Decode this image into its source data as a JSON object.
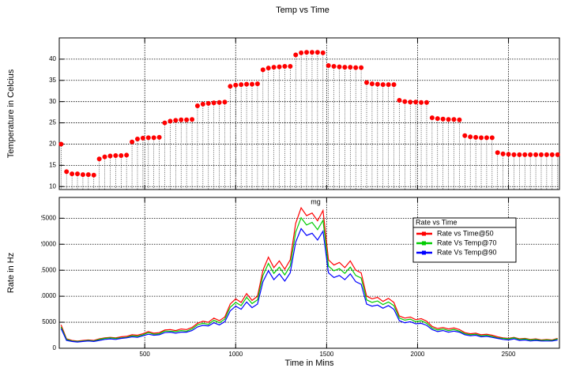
{
  "chart_data": [
    {
      "type": "scatter",
      "title": "Temp vs Time",
      "ylabel": "Temperature in Celcius",
      "drop_lines": true,
      "grid": true,
      "xlim": [
        30,
        2780
      ],
      "xticks": [
        500,
        1000,
        1500,
        2000,
        2500
      ],
      "ylim": [
        9.3,
        45
      ],
      "yticks": [
        10,
        15,
        20,
        25,
        30,
        35,
        40
      ],
      "series": [
        {
          "name": "Temp",
          "color": "#ff0000",
          "x": [
            40,
            70,
            100,
            130,
            160,
            190,
            220,
            250,
            280,
            310,
            340,
            370,
            400,
            430,
            460,
            490,
            520,
            550,
            580,
            610,
            640,
            670,
            700,
            730,
            760,
            790,
            820,
            850,
            880,
            910,
            940,
            970,
            1000,
            1030,
            1060,
            1090,
            1120,
            1150,
            1180,
            1210,
            1240,
            1270,
            1300,
            1330,
            1360,
            1390,
            1420,
            1450,
            1480,
            1510,
            1540,
            1570,
            1600,
            1630,
            1660,
            1690,
            1720,
            1750,
            1780,
            1810,
            1840,
            1870,
            1900,
            1930,
            1960,
            1990,
            2020,
            2050,
            2080,
            2110,
            2140,
            2170,
            2200,
            2230,
            2260,
            2290,
            2320,
            2350,
            2380,
            2410,
            2440,
            2470,
            2500,
            2530,
            2560,
            2590,
            2620,
            2650,
            2680,
            2710,
            2740,
            2770
          ],
          "values": [
            20,
            13.5,
            13,
            13,
            12.8,
            12.8,
            12.7,
            16.5,
            17,
            17.2,
            17.3,
            17.3,
            17.4,
            20.5,
            21.2,
            21.4,
            21.5,
            21.5,
            21.6,
            25,
            25.4,
            25.6,
            25.7,
            25.7,
            25.8,
            29,
            29.4,
            29.6,
            29.7,
            29.8,
            29.9,
            33.6,
            33.9,
            34,
            34.1,
            34.1,
            34.2,
            37.5,
            37.9,
            38.1,
            38.2,
            38.3,
            38.3,
            41,
            41.5,
            41.6,
            41.6,
            41.6,
            41.5,
            38.5,
            38.3,
            38.2,
            38.1,
            38.1,
            38,
            38,
            34.5,
            34.2,
            34.1,
            34,
            34,
            34,
            30.3,
            30,
            29.9,
            29.9,
            29.8,
            29.8,
            26.2,
            26,
            25.9,
            25.8,
            25.8,
            25.7,
            22,
            21.7,
            21.6,
            21.5,
            21.5,
            21.5,
            18,
            17.7,
            17.6,
            17.5,
            17.5,
            17.5,
            17.5,
            17.5,
            17.5,
            17.5,
            17.5,
            17.5
          ]
        }
      ]
    },
    {
      "type": "line",
      "xlabel": "Time in Mins",
      "ylabel": "Rate in Hz",
      "grid": true,
      "legend_title": "Rate vs Time",
      "legend_position": "right",
      "annotation": "mg",
      "annotation_x": 1440,
      "annotation_y": 28100,
      "xlim": [
        30,
        2780
      ],
      "xticks": [
        500,
        1000,
        1500,
        2000,
        2500
      ],
      "ylim": [
        0,
        29000
      ],
      "yticks": [
        0,
        5000,
        10000,
        15000,
        20000,
        25000
      ],
      "x": [
        40,
        70,
        100,
        130,
        160,
        190,
        220,
        250,
        280,
        310,
        340,
        370,
        400,
        430,
        460,
        490,
        520,
        550,
        580,
        610,
        640,
        670,
        700,
        730,
        760,
        790,
        820,
        850,
        880,
        910,
        940,
        970,
        1000,
        1030,
        1060,
        1090,
        1120,
        1150,
        1180,
        1210,
        1240,
        1270,
        1300,
        1330,
        1360,
        1390,
        1420,
        1450,
        1480,
        1510,
        1540,
        1570,
        1600,
        1630,
        1660,
        1690,
        1720,
        1750,
        1780,
        1810,
        1840,
        1870,
        1900,
        1930,
        1960,
        1990,
        2020,
        2050,
        2080,
        2110,
        2140,
        2170,
        2200,
        2230,
        2260,
        2290,
        2320,
        2350,
        2380,
        2410,
        2440,
        2470,
        2500,
        2530,
        2560,
        2590,
        2620,
        2650,
        2680,
        2710,
        2740,
        2770
      ],
      "series": [
        {
          "name": "Rate vs Time@50",
          "color": "#ff0000",
          "values": [
            4500,
            1800,
            1500,
            1400,
            1500,
            1600,
            1500,
            1800,
            2000,
            2100,
            2000,
            2200,
            2300,
            2600,
            2500,
            2800,
            3200,
            2900,
            3000,
            3500,
            3600,
            3400,
            3700,
            3600,
            4000,
            4800,
            5200,
            5000,
            5800,
            5300,
            6000,
            8500,
            9500,
            8800,
            10500,
            9200,
            10000,
            15000,
            17500,
            15500,
            16800,
            15200,
            17000,
            24000,
            27000,
            25500,
            26000,
            24500,
            26500,
            17000,
            16000,
            16500,
            15500,
            16800,
            15000,
            14500,
            10000,
            9500,
            9800,
            9000,
            9600,
            8800,
            6200,
            5800,
            6000,
            5500,
            5700,
            5200,
            4200,
            3800,
            4000,
            3700,
            3900,
            3600,
            3000,
            2800,
            2900,
            2600,
            2700,
            2500,
            2200,
            2000,
            1900,
            2100,
            1800,
            1900,
            1700,
            1800,
            1600,
            1700,
            1600,
            1900
          ]
        },
        {
          "name": "Rate Vs Temp@70",
          "color": "#00cc00",
          "values": [
            4100,
            1700,
            1400,
            1300,
            1400,
            1500,
            1400,
            1700,
            1900,
            2000,
            1900,
            2000,
            2100,
            2400,
            2300,
            2600,
            3000,
            2700,
            2800,
            3300,
            3300,
            3200,
            3400,
            3300,
            3700,
            4500,
            4800,
            4600,
            5400,
            4900,
            5600,
            7900,
            8800,
            8200,
            9800,
            8600,
            9300,
            14000,
            16300,
            14400,
            15600,
            14100,
            15800,
            22300,
            25100,
            23700,
            24200,
            22800,
            24600,
            15800,
            14900,
            15300,
            14400,
            15600,
            14000,
            13500,
            9300,
            8800,
            9100,
            8400,
            8900,
            8200,
            5800,
            5400,
            5600,
            5100,
            5300,
            4800,
            3900,
            3500,
            3700,
            3400,
            3600,
            3300,
            2800,
            2600,
            2700,
            2400,
            2500,
            2300,
            2000,
            1900,
            1800,
            2000,
            1700,
            1800,
            1600,
            1700,
            1500,
            1600,
            1500,
            1800
          ]
        },
        {
          "name": "Rate Vs Temp@90",
          "color": "#0000ff",
          "values": [
            3800,
            1500,
            1300,
            1200,
            1300,
            1400,
            1300,
            1500,
            1700,
            1800,
            1700,
            1900,
            2000,
            2200,
            2100,
            2400,
            2700,
            2500,
            2600,
            3000,
            3100,
            2900,
            3100,
            3100,
            3400,
            4100,
            4400,
            4300,
            4900,
            4500,
            5100,
            7200,
            8100,
            7500,
            8900,
            7800,
            8500,
            12800,
            14900,
            13200,
            14300,
            12900,
            14500,
            20400,
            23000,
            21700,
            22100,
            20800,
            22500,
            14500,
            13600,
            14000,
            13200,
            14300,
            12800,
            12300,
            8500,
            8100,
            8300,
            7700,
            8200,
            7500,
            5300,
            4900,
            5100,
            4700,
            4800,
            4400,
            3600,
            3200,
            3400,
            3100,
            3300,
            3100,
            2600,
            2400,
            2500,
            2200,
            2300,
            2100,
            1900,
            1700,
            1600,
            1800,
            1500,
            1600,
            1400,
            1500,
            1400,
            1400,
            1400,
            1600
          ]
        }
      ]
    }
  ]
}
